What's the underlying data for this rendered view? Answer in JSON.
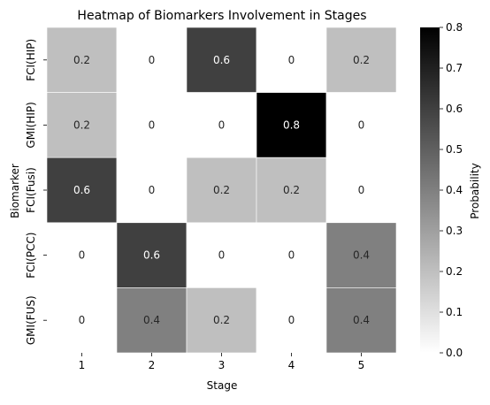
{
  "chart_data": {
    "type": "heatmap",
    "title": "Heatmap of Biomarkers Involvement in Stages",
    "xlabel": "Stage",
    "ylabel": "Biomarker",
    "x_categories": [
      "1",
      "2",
      "3",
      "4",
      "5"
    ],
    "y_categories": [
      "FCI(HIP)",
      "GMI(HIP)",
      "FCI(Fusi)",
      "FCI(PCC)",
      "GMI(FUS)"
    ],
    "cell_labels": [
      [
        "0.2",
        "0",
        "0.6",
        "0",
        "0.2"
      ],
      [
        "0.2",
        "0",
        "0",
        "0.8",
        "0"
      ],
      [
        "0.6",
        "0",
        "0.2",
        "0.2",
        "0"
      ],
      [
        "0",
        "0.6",
        "0",
        "0",
        "0.4"
      ],
      [
        "0",
        "0.4",
        "0.2",
        "0",
        "0.4"
      ]
    ],
    "values": [
      [
        0.2,
        0,
        0.6,
        0,
        0.2
      ],
      [
        0.2,
        0,
        0,
        0.8,
        0
      ],
      [
        0.6,
        0,
        0.2,
        0.2,
        0
      ],
      [
        0,
        0.6,
        0,
        0,
        0.4
      ],
      [
        0,
        0.4,
        0.2,
        0,
        0.4
      ]
    ],
    "colorbar": {
      "label": "Probability",
      "range": [
        0,
        0.8
      ],
      "ticks": [
        "0.0",
        "0.1",
        "0.2",
        "0.3",
        "0.4",
        "0.5",
        "0.6",
        "0.7",
        "0.8"
      ],
      "colormap": "Greys",
      "low_color": "#ffffff",
      "high_color": "#000000"
    },
    "grid": false,
    "cell_border_color": "#ffffff"
  }
}
